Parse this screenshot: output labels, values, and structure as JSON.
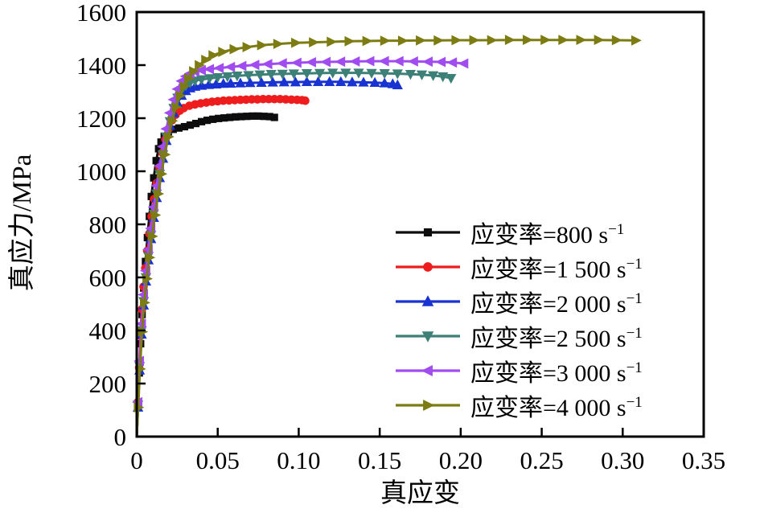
{
  "figure": {
    "background": "#ffffff",
    "axis_color": "#000000"
  },
  "chart_data": {
    "type": "line",
    "title": "",
    "xlabel": "真应变",
    "ylabel": "真应力/MPa",
    "xlim": [
      0,
      0.35
    ],
    "ylim": [
      0,
      1600
    ],
    "grid": false,
    "legend_position": "inside-right-middle",
    "x_ticks": [
      0,
      0.05,
      0.1,
      0.15,
      0.2,
      0.25,
      0.3,
      0.35
    ],
    "x_tick_labels": [
      "0",
      "0.05",
      "0.10",
      "0.15",
      "0.20",
      "0.25",
      "0.30",
      "0.35"
    ],
    "y_ticks": [
      0,
      200,
      400,
      600,
      800,
      1000,
      1200,
      1400,
      1600
    ],
    "y_tick_labels": [
      "0",
      "200",
      "400",
      "600",
      "800",
      "1000",
      "1200",
      "1400",
      "1600"
    ],
    "series": [
      {
        "name": "应变率=800 s⁻¹",
        "name_base": "应变率=800 s",
        "name_exp": "−1",
        "color": "#0d0d0d",
        "marker": "square",
        "points": [
          [
            0,
            0
          ],
          [
            0.0008,
            120
          ],
          [
            0.0016,
            240
          ],
          [
            0.0024,
            350
          ],
          [
            0.0033,
            460
          ],
          [
            0.0043,
            560
          ],
          [
            0.0054,
            660
          ],
          [
            0.0066,
            750
          ],
          [
            0.0078,
            830
          ],
          [
            0.009,
            905
          ],
          [
            0.0105,
            975
          ],
          [
            0.012,
            1040
          ],
          [
            0.0135,
            1085
          ],
          [
            0.015,
            1110
          ],
          [
            0.017,
            1132
          ],
          [
            0.0195,
            1148
          ],
          [
            0.0225,
            1158
          ],
          [
            0.026,
            1163
          ],
          [
            0.0295,
            1168
          ],
          [
            0.033,
            1174
          ],
          [
            0.0365,
            1180
          ],
          [
            0.04,
            1187
          ],
          [
            0.0435,
            1192
          ],
          [
            0.047,
            1196
          ],
          [
            0.0505,
            1199
          ],
          [
            0.054,
            1201
          ],
          [
            0.0575,
            1203
          ],
          [
            0.061,
            1205
          ],
          [
            0.0645,
            1206
          ],
          [
            0.068,
            1207
          ],
          [
            0.0715,
            1208
          ],
          [
            0.075,
            1208
          ],
          [
            0.0785,
            1207
          ],
          [
            0.082,
            1206
          ],
          [
            0.085,
            1203
          ]
        ]
      },
      {
        "name": "应变率=1 500 s⁻¹",
        "name_base": "应变率=1 500 s",
        "name_exp": "−1",
        "color": "#ee1c1c",
        "marker": "circle",
        "points": [
          [
            0,
            0
          ],
          [
            0.0007,
            130
          ],
          [
            0.0015,
            260
          ],
          [
            0.0023,
            380
          ],
          [
            0.0032,
            480
          ],
          [
            0.0042,
            565
          ],
          [
            0.0053,
            635
          ],
          [
            0.0065,
            700
          ],
          [
            0.0078,
            765
          ],
          [
            0.0092,
            830
          ],
          [
            0.0107,
            895
          ],
          [
            0.0123,
            955
          ],
          [
            0.014,
            1015
          ],
          [
            0.0158,
            1070
          ],
          [
            0.0177,
            1120
          ],
          [
            0.0197,
            1160
          ],
          [
            0.0218,
            1192
          ],
          [
            0.024,
            1213
          ],
          [
            0.0265,
            1228
          ],
          [
            0.029,
            1238
          ],
          [
            0.0325,
            1247
          ],
          [
            0.036,
            1252
          ],
          [
            0.0395,
            1256
          ],
          [
            0.043,
            1259
          ],
          [
            0.0465,
            1262
          ],
          [
            0.05,
            1264
          ],
          [
            0.0535,
            1266
          ],
          [
            0.057,
            1267
          ],
          [
            0.0605,
            1268
          ],
          [
            0.064,
            1269
          ],
          [
            0.0675,
            1270
          ],
          [
            0.071,
            1271
          ],
          [
            0.0745,
            1271
          ],
          [
            0.078,
            1272
          ],
          [
            0.0815,
            1272
          ],
          [
            0.085,
            1272
          ],
          [
            0.0885,
            1272
          ],
          [
            0.092,
            1271
          ],
          [
            0.0955,
            1270
          ],
          [
            0.099,
            1269
          ],
          [
            0.102,
            1268
          ],
          [
            0.104,
            1266
          ]
        ]
      },
      {
        "name": "应变率=2 000 s⁻¹",
        "name_base": "应变率=2 000 s",
        "name_exp": "−1",
        "color": "#1833d2",
        "marker": "triangle-up",
        "points": [
          [
            0,
            0
          ],
          [
            0.0008,
            110
          ],
          [
            0.0018,
            250
          ],
          [
            0.003,
            385
          ],
          [
            0.0043,
            495
          ],
          [
            0.0057,
            585
          ],
          [
            0.0072,
            665
          ],
          [
            0.0088,
            745
          ],
          [
            0.0105,
            825
          ],
          [
            0.0123,
            900
          ],
          [
            0.0142,
            975
          ],
          [
            0.0162,
            1048
          ],
          [
            0.0183,
            1115
          ],
          [
            0.0205,
            1172
          ],
          [
            0.0228,
            1220
          ],
          [
            0.0252,
            1258
          ],
          [
            0.0277,
            1285
          ],
          [
            0.0303,
            1303
          ],
          [
            0.033,
            1313
          ],
          [
            0.036,
            1319
          ],
          [
            0.04,
            1323
          ],
          [
            0.0445,
            1326
          ],
          [
            0.049,
            1328
          ],
          [
            0.0535,
            1330
          ],
          [
            0.058,
            1331
          ],
          [
            0.064,
            1332
          ],
          [
            0.07,
            1333
          ],
          [
            0.077,
            1334
          ],
          [
            0.084,
            1335
          ],
          [
            0.091,
            1336
          ],
          [
            0.098,
            1336
          ],
          [
            0.105,
            1337
          ],
          [
            0.112,
            1337
          ],
          [
            0.119,
            1337
          ],
          [
            0.126,
            1337
          ],
          [
            0.133,
            1336
          ],
          [
            0.14,
            1335
          ],
          [
            0.147,
            1334
          ],
          [
            0.153,
            1332
          ],
          [
            0.158,
            1329
          ],
          [
            0.161,
            1325
          ]
        ]
      },
      {
        "name": "应变率=2 500 s⁻¹",
        "name_base": "应变率=2 500 s",
        "name_exp": "−1",
        "color": "#3d8077",
        "marker": "triangle-down",
        "points": [
          [
            0,
            0
          ],
          [
            0.0008,
            120
          ],
          [
            0.0018,
            265
          ],
          [
            0.003,
            400
          ],
          [
            0.0043,
            510
          ],
          [
            0.0057,
            600
          ],
          [
            0.0072,
            680
          ],
          [
            0.0088,
            760
          ],
          [
            0.0105,
            840
          ],
          [
            0.0123,
            915
          ],
          [
            0.0142,
            990
          ],
          [
            0.0162,
            1063
          ],
          [
            0.0183,
            1130
          ],
          [
            0.0205,
            1188
          ],
          [
            0.0228,
            1238
          ],
          [
            0.0252,
            1277
          ],
          [
            0.0277,
            1305
          ],
          [
            0.0303,
            1323
          ],
          [
            0.033,
            1334
          ],
          [
            0.036,
            1341
          ],
          [
            0.04,
            1346
          ],
          [
            0.045,
            1350
          ],
          [
            0.05,
            1354
          ],
          [
            0.056,
            1357
          ],
          [
            0.062,
            1360
          ],
          [
            0.069,
            1362
          ],
          [
            0.076,
            1364
          ],
          [
            0.083,
            1366
          ],
          [
            0.09,
            1367
          ],
          [
            0.097,
            1368
          ],
          [
            0.105,
            1369
          ],
          [
            0.113,
            1370
          ],
          [
            0.121,
            1371
          ],
          [
            0.129,
            1371
          ],
          [
            0.137,
            1371
          ],
          [
            0.145,
            1370
          ],
          [
            0.153,
            1369
          ],
          [
            0.161,
            1368
          ],
          [
            0.169,
            1366
          ],
          [
            0.176,
            1364
          ],
          [
            0.183,
            1361
          ],
          [
            0.189,
            1357
          ],
          [
            0.194,
            1351
          ]
        ]
      },
      {
        "name": "应变率=3 000 s⁻¹",
        "name_base": "应变率=3 000 s",
        "name_exp": "−1",
        "color": "#a14cf0",
        "marker": "triangle-left",
        "points": [
          [
            0,
            0
          ],
          [
            0.0008,
            130
          ],
          [
            0.0018,
            285
          ],
          [
            0.003,
            425
          ],
          [
            0.0043,
            535
          ],
          [
            0.0057,
            625
          ],
          [
            0.0072,
            705
          ],
          [
            0.0088,
            785
          ],
          [
            0.0105,
            865
          ],
          [
            0.0123,
            945
          ],
          [
            0.0142,
            1020
          ],
          [
            0.0162,
            1093
          ],
          [
            0.0183,
            1160
          ],
          [
            0.0205,
            1220
          ],
          [
            0.0228,
            1270
          ],
          [
            0.0252,
            1310
          ],
          [
            0.0277,
            1340
          ],
          [
            0.0303,
            1358
          ],
          [
            0.033,
            1369
          ],
          [
            0.036,
            1376
          ],
          [
            0.04,
            1381
          ],
          [
            0.045,
            1385
          ],
          [
            0.051,
            1389
          ],
          [
            0.058,
            1393
          ],
          [
            0.065,
            1397
          ],
          [
            0.073,
            1401
          ],
          [
            0.081,
            1404
          ],
          [
            0.09,
            1407
          ],
          [
            0.099,
            1409
          ],
          [
            0.108,
            1411
          ],
          [
            0.117,
            1412
          ],
          [
            0.126,
            1413
          ],
          [
            0.135,
            1414
          ],
          [
            0.144,
            1415
          ],
          [
            0.153,
            1415
          ],
          [
            0.162,
            1415
          ],
          [
            0.171,
            1414
          ],
          [
            0.18,
            1413
          ],
          [
            0.188,
            1412
          ],
          [
            0.195,
            1410
          ],
          [
            0.202,
            1406
          ]
        ]
      },
      {
        "name": "应变率=4 000 s⁻¹",
        "name_base": "应变率=4 000 s",
        "name_exp": "−1",
        "color": "#7c7c12",
        "marker": "triangle-right",
        "points": [
          [
            0,
            0
          ],
          [
            0.0009,
            110
          ],
          [
            0.002,
            255
          ],
          [
            0.0033,
            395
          ],
          [
            0.0047,
            505
          ],
          [
            0.0062,
            595
          ],
          [
            0.0078,
            675
          ],
          [
            0.0095,
            755
          ],
          [
            0.0113,
            835
          ],
          [
            0.0132,
            915
          ],
          [
            0.0152,
            990
          ],
          [
            0.0173,
            1063
          ],
          [
            0.0195,
            1130
          ],
          [
            0.0218,
            1190
          ],
          [
            0.0242,
            1242
          ],
          [
            0.0267,
            1285
          ],
          [
            0.0293,
            1320
          ],
          [
            0.032,
            1350
          ],
          [
            0.035,
            1377
          ],
          [
            0.0385,
            1400
          ],
          [
            0.0425,
            1420
          ],
          [
            0.047,
            1437
          ],
          [
            0.053,
            1450
          ],
          [
            0.06,
            1460
          ],
          [
            0.068,
            1468
          ],
          [
            0.077,
            1475
          ],
          [
            0.087,
            1480
          ],
          [
            0.098,
            1484
          ],
          [
            0.109,
            1486
          ],
          [
            0.12,
            1488
          ],
          [
            0.131,
            1490
          ],
          [
            0.142,
            1491
          ],
          [
            0.153,
            1492
          ],
          [
            0.164,
            1492
          ],
          [
            0.175,
            1493
          ],
          [
            0.186,
            1493
          ],
          [
            0.197,
            1494
          ],
          [
            0.208,
            1494
          ],
          [
            0.219,
            1494
          ],
          [
            0.23,
            1495
          ],
          [
            0.241,
            1495
          ],
          [
            0.252,
            1495
          ],
          [
            0.263,
            1495
          ],
          [
            0.274,
            1495
          ],
          [
            0.285,
            1495
          ],
          [
            0.296,
            1494
          ],
          [
            0.308,
            1493
          ]
        ]
      }
    ]
  }
}
